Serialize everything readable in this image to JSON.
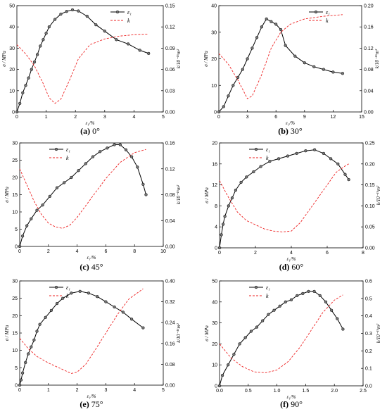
{
  "chart_data": [
    {
      "type": "line",
      "caption": {
        "tag": "(a)",
        "angle": "0°"
      },
      "xlabel": "ε₁/%",
      "ylabel": "σ / MPa",
      "ylabel2": "k/10⁻¹⁶m²",
      "xlim": [
        0,
        5
      ],
      "xticks": [
        "0",
        "1",
        "2",
        "3",
        "4",
        "5"
      ],
      "ylim": [
        0,
        50
      ],
      "yticks": [
        "0",
        "10",
        "20",
        "30",
        "40",
        "50"
      ],
      "y2lim": [
        0,
        0.15
      ],
      "y2ticks": [
        "0.00",
        "0.03",
        "0.06",
        "0.09",
        "0.12",
        "0.15"
      ],
      "legend": {
        "position": "top-right",
        "labels": [
          "ε₁",
          "k"
        ]
      },
      "series": [
        {
          "name": "ε₁",
          "axis": "left",
          "style": "solid-markers",
          "color": "#000000",
          "x": [
            0,
            0.1,
            0.2,
            0.3,
            0.4,
            0.5,
            0.6,
            0.7,
            0.8,
            0.9,
            1.0,
            1.1,
            1.3,
            1.5,
            1.7,
            1.9,
            2.1,
            2.4,
            2.7,
            3.0,
            3.4,
            3.8,
            4.2,
            4.5
          ],
          "y": [
            0,
            4,
            9,
            12.5,
            16,
            20,
            23.5,
            27,
            31,
            34,
            37,
            40,
            43.5,
            46,
            47.3,
            48,
            47.5,
            45,
            41,
            38,
            34,
            32,
            29,
            27.5
          ]
        },
        {
          "name": "k",
          "axis": "right",
          "style": "dashed",
          "color": "#ee2222",
          "x": [
            0,
            0.3,
            0.6,
            0.9,
            1.1,
            1.3,
            1.5,
            1.8,
            2.1,
            2.5,
            3.0,
            3.5,
            4.0,
            4.5
          ],
          "y": [
            0.095,
            0.082,
            0.065,
            0.04,
            0.02,
            0.012,
            0.018,
            0.045,
            0.075,
            0.095,
            0.103,
            0.107,
            0.109,
            0.11
          ]
        }
      ]
    },
    {
      "type": "line",
      "caption": {
        "tag": "(b)",
        "angle": "30°"
      },
      "xlabel": "ε₁/%",
      "ylabel": "σ / MPa",
      "ylabel2": "k/10⁻¹⁶m²",
      "xlim": [
        0,
        15
      ],
      "xticks": [
        "0",
        "3",
        "6",
        "9",
        "12",
        "15"
      ],
      "ylim": [
        0,
        40
      ],
      "yticks": [
        "0",
        "10",
        "20",
        "30",
        "40"
      ],
      "y2lim": [
        0,
        0.2
      ],
      "y2ticks": [
        "0.00",
        "0.04",
        "0.08",
        "0.12",
        "0.16",
        "0.20"
      ],
      "legend": {
        "position": "top-right",
        "labels": [
          "ε₁",
          "k"
        ]
      },
      "series": [
        {
          "name": "ε₁",
          "axis": "left",
          "style": "solid-markers",
          "color": "#000000",
          "x": [
            0,
            0.5,
            1.0,
            1.5,
            2.0,
            2.5,
            3.0,
            3.5,
            4.0,
            4.5,
            5.0,
            5.5,
            6.0,
            6.5,
            7.0,
            8.0,
            9.0,
            10.0,
            11.0,
            12.0,
            13.0
          ],
          "y": [
            0,
            2,
            6,
            10,
            13,
            16,
            20,
            24,
            28,
            32,
            35,
            34,
            33,
            31,
            25,
            21,
            18.5,
            17,
            16,
            15,
            14.5
          ]
        },
        {
          "name": "k",
          "axis": "right",
          "style": "dashed",
          "color": "#ee2222",
          "x": [
            0,
            1.0,
            2.0,
            3.0,
            3.5,
            4.5,
            5.5,
            6.5,
            7.5,
            9.0,
            11.0,
            13.0
          ],
          "y": [
            0.11,
            0.09,
            0.06,
            0.025,
            0.03,
            0.07,
            0.12,
            0.15,
            0.165,
            0.175,
            0.18,
            0.183
          ]
        }
      ]
    },
    {
      "type": "line",
      "caption": {
        "tag": "(c)",
        "angle": "45°"
      },
      "xlabel": "ε₁/%",
      "ylabel": "σ / MPa",
      "ylabel2": "k/10⁻¹⁶m²",
      "xlim": [
        0,
        10
      ],
      "xticks": [
        "0",
        "2",
        "4",
        "6",
        "8",
        "10"
      ],
      "ylim": [
        0,
        30
      ],
      "yticks": [
        "0",
        "5",
        "10",
        "15",
        "20",
        "25",
        "30"
      ],
      "y2lim": [
        0,
        0.16
      ],
      "y2ticks": [
        "0.00",
        "0.04",
        "0.08",
        "0.12",
        "0.16"
      ],
      "legend": {
        "position": "top-left",
        "labels": [
          "ε₁",
          "k"
        ]
      },
      "series": [
        {
          "name": "ε₁",
          "axis": "left",
          "style": "solid-markers",
          "color": "#000000",
          "x": [
            0,
            0.2,
            0.5,
            0.8,
            1.2,
            1.6,
            2.1,
            2.6,
            3.1,
            3.6,
            4.1,
            4.6,
            5.1,
            5.6,
            6.1,
            6.6,
            7.0,
            7.4,
            7.8,
            8.2,
            8.6,
            8.8
          ],
          "y": [
            0,
            3,
            6,
            8,
            10.5,
            12,
            14.5,
            17,
            18.5,
            20,
            22,
            24,
            26,
            27.5,
            28.5,
            29.5,
            29.5,
            28,
            26,
            23,
            18,
            15
          ]
        },
        {
          "name": "k",
          "axis": "right",
          "style": "dashed",
          "color": "#ee2222",
          "x": [
            0,
            0.5,
            1.0,
            1.5,
            2.0,
            2.5,
            3.0,
            3.5,
            4.0,
            5.0,
            6.0,
            7.0,
            8.0,
            8.8
          ],
          "y": [
            0.12,
            0.095,
            0.07,
            0.05,
            0.036,
            0.03,
            0.028,
            0.033,
            0.045,
            0.075,
            0.105,
            0.13,
            0.145,
            0.15
          ]
        }
      ]
    },
    {
      "type": "line",
      "caption": {
        "tag": "(d)",
        "angle": "60°"
      },
      "xlabel": "ε₁/%",
      "ylabel": "σ / MPa",
      "ylabel2": "k/10⁻¹⁶m²",
      "xlim": [
        0,
        8
      ],
      "xticks": [
        "0",
        "2",
        "4",
        "6",
        "8"
      ],
      "ylim": [
        0,
        20
      ],
      "yticks": [
        "0",
        "4",
        "8",
        "12",
        "16",
        "20"
      ],
      "y2lim": [
        0,
        0.25
      ],
      "y2ticks": [
        "0.00",
        "0.05",
        "0.10",
        "0.15",
        "0.20",
        "0.25"
      ],
      "legend": {
        "position": "top-left",
        "labels": [
          "ε₁",
          "k"
        ]
      },
      "series": [
        {
          "name": "ε₁",
          "axis": "left",
          "style": "solid-markers",
          "color": "#000000",
          "x": [
            0,
            0.1,
            0.2,
            0.3,
            0.5,
            0.7,
            0.9,
            1.2,
            1.5,
            1.9,
            2.3,
            2.8,
            3.3,
            3.8,
            4.3,
            4.8,
            5.3,
            5.8,
            6.2,
            6.6,
            7.0,
            7.2
          ],
          "y": [
            0,
            2.5,
            4.5,
            6,
            8,
            9.5,
            11,
            12.5,
            13.5,
            14.5,
            15.5,
            16.5,
            17,
            17.5,
            18,
            18.5,
            18.7,
            18,
            17,
            16,
            14,
            13
          ]
        },
        {
          "name": "k",
          "axis": "right",
          "style": "dashed",
          "color": "#ee2222",
          "x": [
            0,
            0.5,
            1.0,
            1.5,
            2.0,
            2.5,
            3.0,
            3.5,
            4.0,
            4.5,
            5.0,
            5.5,
            6.0,
            6.5,
            7.0,
            7.2
          ],
          "y": [
            0.16,
            0.12,
            0.085,
            0.065,
            0.055,
            0.045,
            0.04,
            0.038,
            0.04,
            0.06,
            0.09,
            0.12,
            0.15,
            0.18,
            0.195,
            0.2
          ]
        }
      ]
    },
    {
      "type": "line",
      "caption": {
        "tag": "(e)",
        "angle": "75°"
      },
      "xlabel": "ε₁/%",
      "ylabel": "σ / MPa",
      "ylabel2": "k/10⁻¹⁶m²",
      "xlim": [
        0,
        5
      ],
      "xticks": [
        "0",
        "1",
        "2",
        "3",
        "4",
        "5"
      ],
      "ylim": [
        0,
        30
      ],
      "yticks": [
        "0",
        "5",
        "10",
        "15",
        "20",
        "25",
        "30"
      ],
      "y2lim": [
        0,
        0.4
      ],
      "y2ticks": [
        "0.00",
        "0.08",
        "0.16",
        "0.24",
        "0.32",
        "0.40"
      ],
      "legend": {
        "position": "top-left",
        "labels": [
          "ε₁",
          "k"
        ]
      },
      "series": [
        {
          "name": "ε₁",
          "axis": "left",
          "style": "solid-markers",
          "color": "#000000",
          "x": [
            0,
            0.05,
            0.1,
            0.2,
            0.3,
            0.4,
            0.5,
            0.6,
            0.7,
            0.9,
            1.1,
            1.3,
            1.5,
            1.8,
            2.1,
            2.4,
            2.7,
            3.0,
            3.3,
            3.6,
            3.9,
            4.3
          ],
          "y": [
            0,
            1.5,
            3.5,
            6.5,
            9,
            11,
            13,
            15.5,
            17.5,
            19.5,
            21.5,
            23.5,
            25,
            26.5,
            27,
            26.5,
            25.5,
            24,
            22.5,
            21,
            19,
            16.5
          ]
        },
        {
          "name": "k",
          "axis": "right",
          "style": "dashed",
          "color": "#ee2222",
          "x": [
            0,
            0.3,
            0.6,
            1.0,
            1.4,
            1.8,
            2.0,
            2.3,
            2.6,
            3.0,
            3.4,
            3.8,
            4.3
          ],
          "y": [
            0.18,
            0.14,
            0.11,
            0.085,
            0.065,
            0.045,
            0.05,
            0.08,
            0.13,
            0.2,
            0.27,
            0.33,
            0.37
          ]
        }
      ]
    },
    {
      "type": "line",
      "caption": {
        "tag": "(f)",
        "angle": "90°"
      },
      "xlabel": "ε₁/%",
      "ylabel": "σ / MPa",
      "ylabel2": "k/10⁻¹⁶m²",
      "xlim": [
        0,
        2.5
      ],
      "xticks": [
        "0.0",
        "0.5",
        "1.0",
        "1.5",
        "2.0",
        "2.5"
      ],
      "ylim": [
        0,
        50
      ],
      "yticks": [
        "0",
        "10",
        "20",
        "30",
        "40",
        "50"
      ],
      "y2lim": [
        0,
        0.6
      ],
      "y2ticks": [
        "0.0",
        "0.1",
        "0.2",
        "0.3",
        "0.4",
        "0.5",
        "0.6"
      ],
      "legend": {
        "position": "top-left",
        "labels": [
          "ε₁",
          "k"
        ]
      },
      "series": [
        {
          "name": "ε₁",
          "axis": "left",
          "style": "solid-markers",
          "color": "#000000",
          "x": [
            0,
            0.05,
            0.15,
            0.25,
            0.35,
            0.45,
            0.55,
            0.65,
            0.75,
            0.85,
            0.95,
            1.05,
            1.15,
            1.25,
            1.35,
            1.45,
            1.55,
            1.65,
            1.75,
            1.85,
            1.95,
            2.05,
            2.15
          ],
          "y": [
            0,
            5,
            10,
            15,
            20,
            23,
            26,
            28,
            31,
            34,
            36,
            38,
            40,
            41,
            43,
            44,
            45,
            45,
            43,
            40,
            36,
            32,
            27
          ]
        },
        {
          "name": "k",
          "axis": "right",
          "style": "dashed",
          "color": "#ee2222",
          "x": [
            0,
            0.2,
            0.4,
            0.6,
            0.8,
            1.0,
            1.2,
            1.4,
            1.6,
            1.8,
            2.0,
            2.15
          ],
          "y": [
            0.24,
            0.16,
            0.11,
            0.08,
            0.075,
            0.09,
            0.14,
            0.22,
            0.32,
            0.42,
            0.49,
            0.52
          ]
        }
      ]
    }
  ]
}
